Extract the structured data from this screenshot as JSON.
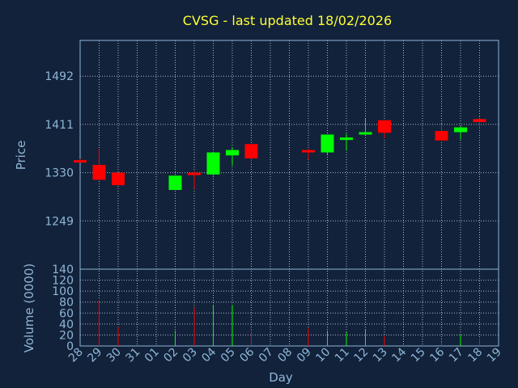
{
  "chart_data": {
    "type": "candlestick",
    "title": "CVSG - last updated 18/02/2026",
    "xlabel": "Day",
    "price_panel": {
      "ylabel": "Price",
      "ylim": [
        1168,
        1552
      ],
      "yticks": [
        1249,
        1330,
        1411,
        1492
      ],
      "ytick_labels": [
        "1249",
        "1330",
        "1411",
        "1492"
      ],
      "grid": true
    },
    "volume_panel": {
      "ylabel": "Volume (0000)",
      "ylim": [
        0,
        140
      ],
      "yticks": [
        0,
        20,
        40,
        60,
        80,
        100,
        120,
        140
      ],
      "ytick_labels": [
        "0",
        "20",
        "40",
        "60",
        "80",
        "100",
        "120",
        "140"
      ],
      "grid": true
    },
    "x_labels": [
      "28",
      "29",
      "30",
      "31",
      "01",
      "02",
      "03",
      "04",
      "05",
      "06",
      "07",
      "08",
      "09",
      "10",
      "11",
      "12",
      "13",
      "14",
      "15",
      "16",
      "17",
      "18",
      "19"
    ],
    "colors": {
      "background": "#12223a",
      "plot_border": "#8fb6d8",
      "grid": "#aab7c7",
      "up": "#00ff00",
      "down": "#ff0000",
      "title": "#ffff33",
      "axis_text": "#8fb6d8"
    },
    "candles": [
      {
        "day": "28",
        "open": 1351,
        "high": 1353,
        "low": 1348,
        "close": 1348,
        "volume": 0
      },
      {
        "day": "29",
        "open": 1343,
        "high": 1370,
        "low": 1318,
        "close": 1318,
        "volume": 84
      },
      {
        "day": "30",
        "open": 1330,
        "high": 1331,
        "low": 1309,
        "close": 1309,
        "volume": 35
      },
      {
        "day": "02",
        "open": 1301,
        "high": 1325,
        "low": 1301,
        "close": 1325,
        "volume": 28
      },
      {
        "day": "03",
        "open": 1330,
        "high": 1333,
        "low": 1303,
        "close": 1327,
        "volume": 70
      },
      {
        "day": "04",
        "open": 1327,
        "high": 1365,
        "low": 1325,
        "close": 1364,
        "volume": 75
      },
      {
        "day": "05",
        "open": 1359,
        "high": 1372,
        "low": 1342,
        "close": 1368,
        "volume": 75
      },
      {
        "day": "06",
        "open": 1378,
        "high": 1378,
        "low": 1345,
        "close": 1354,
        "volume": 28
      },
      {
        "day": "09",
        "open": 1368,
        "high": 1370,
        "low": 1352,
        "close": 1365,
        "volume": 32
      },
      {
        "day": "10",
        "open": 1364,
        "high": 1394,
        "low": 1361,
        "close": 1394,
        "volume": 28
      },
      {
        "day": "11",
        "open": 1385,
        "high": 1395,
        "low": 1367,
        "close": 1389,
        "volume": 25
      },
      {
        "day": "12",
        "open": 1397,
        "high": 1421,
        "low": 1397,
        "close": 1398,
        "volume": 30
      },
      {
        "day": "13",
        "open": 1418,
        "high": 1418,
        "low": 1388,
        "close": 1397,
        "volume": 18
      },
      {
        "day": "16",
        "open": 1400,
        "high": 1412,
        "low": 1384,
        "close": 1384,
        "volume": 8
      },
      {
        "day": "17",
        "open": 1398,
        "high": 1408,
        "low": 1386,
        "close": 1406,
        "volume": 20
      },
      {
        "day": "18",
        "open": 1420,
        "high": 1424,
        "low": 1405,
        "close": 1415,
        "volume": 14
      }
    ]
  }
}
